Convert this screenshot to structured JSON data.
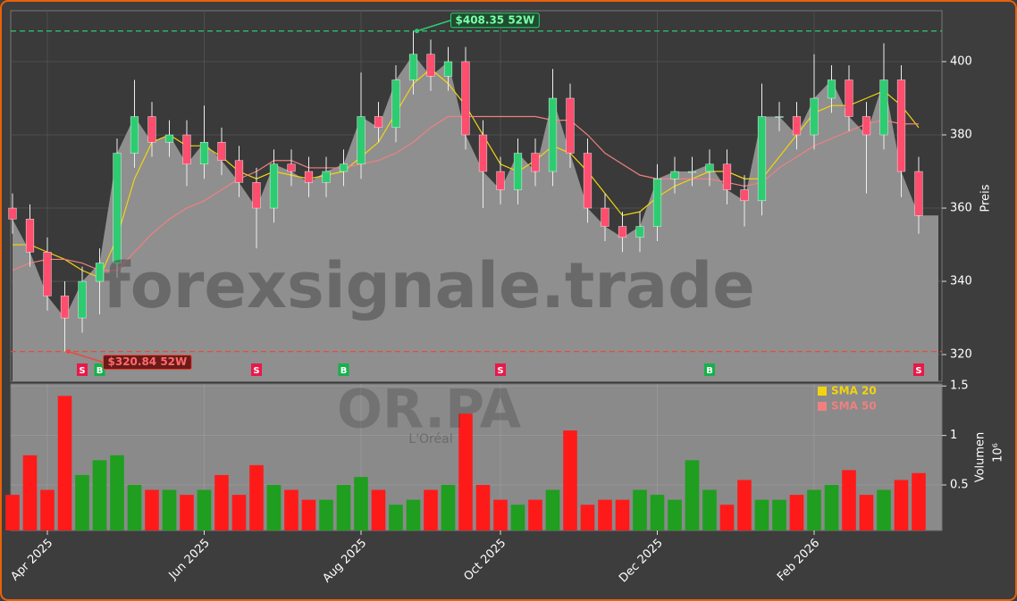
{
  "chart_data": {
    "type": "candlestick",
    "watermark": "forexsignale.trade",
    "ticker": "OR.PA",
    "company": "L'Oréal",
    "ylabel": "Preis",
    "y2label": "Volumen",
    "y2_exponent": "10⁶",
    "categories": [
      null,
      null,
      "Apr 2025",
      null,
      null,
      null,
      null,
      null,
      null,
      null,
      null,
      "Jun 2025",
      null,
      null,
      null,
      null,
      null,
      null,
      null,
      null,
      "Aug 2025",
      null,
      null,
      null,
      null,
      null,
      null,
      null,
      "Oct 2025",
      null,
      null,
      null,
      null,
      null,
      null,
      null,
      null,
      "Dec 2025",
      null,
      null,
      null,
      null,
      null,
      null,
      null,
      null,
      "Feb 2026",
      null,
      null,
      null,
      null,
      null,
      null
    ],
    "open": [
      360,
      357,
      348,
      336,
      330,
      340,
      345,
      375,
      385,
      378,
      380,
      372,
      378,
      373,
      367,
      360,
      372,
      370,
      367,
      370,
      372,
      385,
      382,
      395,
      402,
      396,
      400,
      380,
      370,
      365,
      375,
      370,
      390,
      375,
      360,
      355,
      352,
      355,
      368,
      370,
      370,
      372,
      365,
      362,
      385,
      385,
      380,
      390,
      395,
      385,
      380,
      395,
      370
    ],
    "high": [
      364,
      361,
      352,
      340,
      344,
      349,
      379,
      395,
      389,
      384,
      384,
      388,
      382,
      377,
      371,
      376,
      376,
      374,
      374,
      376,
      397,
      389,
      399,
      408.35,
      406,
      404,
      404,
      384,
      374,
      379,
      379,
      398,
      394,
      379,
      364,
      359,
      359,
      372,
      374,
      374,
      376,
      376,
      369,
      394,
      389,
      389,
      402,
      399,
      399,
      389,
      405,
      399,
      374
    ],
    "low": [
      353,
      344,
      332,
      320.84,
      326,
      331,
      341,
      371,
      374,
      374,
      366,
      368,
      369,
      363,
      349,
      356,
      366,
      363,
      363,
      366,
      368,
      378,
      378,
      391,
      392,
      392,
      376,
      360,
      361,
      361,
      366,
      366,
      371,
      356,
      351,
      348,
      348,
      351,
      364,
      366,
      366,
      361,
      355,
      358,
      381,
      376,
      376,
      386,
      381,
      364,
      376,
      363,
      353
    ],
    "close": [
      357,
      348,
      336,
      330,
      340,
      345,
      375,
      385,
      378,
      380,
      372,
      378,
      373,
      367,
      360,
      372,
      370,
      367,
      370,
      372,
      385,
      382,
      395,
      402,
      396,
      400,
      380,
      370,
      365,
      375,
      370,
      390,
      375,
      360,
      355,
      352,
      355,
      368,
      370,
      370,
      372,
      365,
      362,
      385,
      385,
      380,
      390,
      395,
      385,
      380,
      395,
      370,
      358
    ],
    "volume": [
      0.4,
      0.8,
      0.45,
      1.4,
      0.6,
      0.75,
      0.8,
      0.5,
      0.45,
      0.45,
      0.4,
      0.45,
      0.6,
      0.4,
      0.7,
      0.5,
      0.45,
      0.35,
      0.35,
      0.5,
      0.58,
      0.45,
      0.3,
      0.35,
      0.45,
      0.5,
      1.22,
      0.5,
      0.35,
      0.3,
      0.35,
      0.45,
      1.05,
      0.3,
      0.35,
      0.35,
      0.45,
      0.4,
      0.35,
      0.75,
      0.45,
      0.3,
      0.55,
      0.35,
      0.35,
      0.4,
      0.45,
      0.5,
      0.65,
      0.4,
      0.45,
      0.55,
      0.62
    ],
    "series": [
      {
        "name": "SMA 20",
        "color": "#f2d40e",
        "values": [
          350,
          350,
          348,
          346,
          343,
          341,
          352,
          368,
          378,
          380,
          377,
          377,
          374,
          370,
          368,
          370,
          369,
          368,
          369,
          370,
          374,
          378,
          386,
          394,
          398,
          394,
          388,
          380,
          372,
          370,
          373,
          377,
          375,
          370,
          364,
          358,
          359,
          363,
          366,
          368,
          370,
          370,
          368,
          368,
          374,
          380,
          386,
          388,
          388,
          390,
          392,
          388,
          382
        ]
      },
      {
        "name": "SMA 50",
        "color": "#f08080",
        "values": [
          343,
          345,
          346,
          346,
          345,
          343,
          343,
          348,
          353,
          357,
          360,
          362,
          365,
          368,
          370,
          373,
          373,
          371,
          371,
          371,
          372,
          373,
          375,
          378,
          382,
          385,
          385,
          385,
          385,
          385,
          385,
          384,
          384,
          380,
          375,
          372,
          369,
          368,
          368,
          368,
          368,
          367,
          366,
          367,
          371,
          374,
          377,
          379,
          381,
          383,
          384,
          383,
          383
        ]
      }
    ],
    "signals": [
      null,
      null,
      null,
      null,
      "S",
      "B",
      null,
      null,
      null,
      null,
      null,
      null,
      null,
      null,
      "S",
      null,
      null,
      null,
      null,
      "B",
      null,
      null,
      null,
      null,
      null,
      null,
      null,
      null,
      "S",
      null,
      null,
      null,
      null,
      null,
      null,
      null,
      null,
      null,
      null,
      null,
      "B",
      null,
      null,
      null,
      null,
      null,
      null,
      null,
      null,
      null,
      null,
      null,
      "S"
    ],
    "signal_colors": {
      "S": "#e8194a",
      "B": "#16b14a"
    },
    "up_color": "#2ecc71",
    "down_color": "#ff4d6d",
    "volume_up_color": "#1f9e1f",
    "volume_down_color": "#ff1a1a",
    "annotations": [
      {
        "text": "$408.35 52W",
        "value": 408.35,
        "color": "#2ecc71"
      },
      {
        "text": "$320.84 52W",
        "value": 320.84,
        "color": "#e74c3c"
      }
    ],
    "ylim": [
      312.7,
      413.9
    ],
    "yticks": [
      320,
      340,
      360,
      380,
      400
    ],
    "y2lim": [
      0.04,
      1.52
    ],
    "y2ticks": [
      0.5,
      1.0,
      1.5
    ],
    "grid": true
  }
}
